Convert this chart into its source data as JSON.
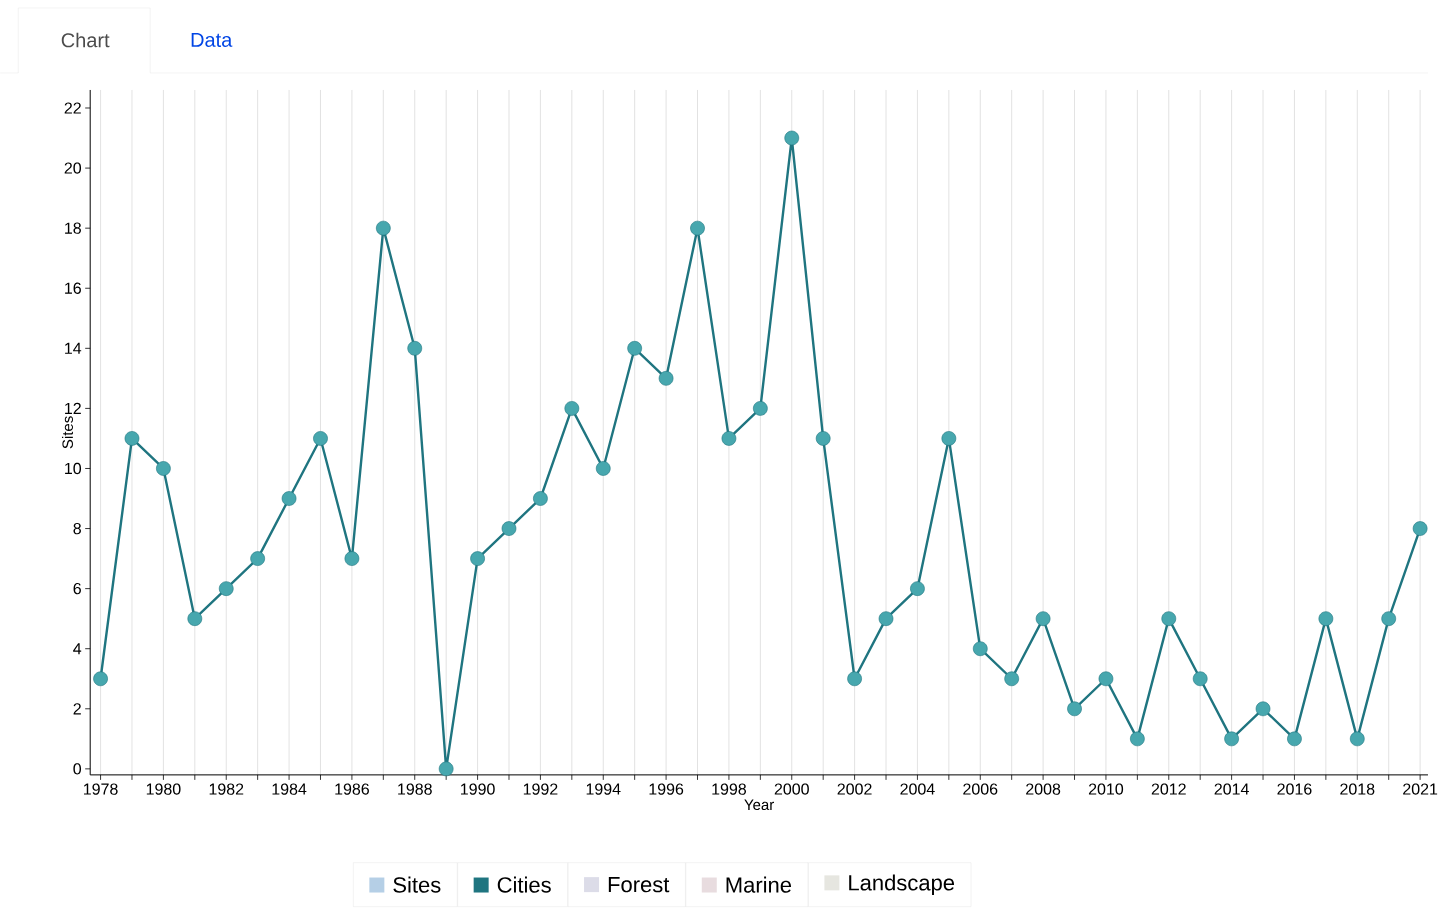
{
  "chart_data": {
    "type": "line",
    "annotations": [
      "Chart",
      "Data"
    ],
    "xlabel": "Year",
    "ylabel": "Sites",
    "categories": [
      "1978",
      null,
      "1980",
      null,
      "1982",
      null,
      "1984",
      null,
      "1986",
      null,
      "1988",
      null,
      "1990",
      null,
      "1992",
      null,
      "1994",
      null,
      "1996",
      null,
      "1998",
      null,
      "2000",
      null,
      "2002",
      null,
      "2004",
      null,
      "2006",
      null,
      "2008",
      null,
      "2010",
      null,
      "2012",
      null,
      "2014",
      null,
      "2016",
      null,
      "2018",
      null,
      "2021"
    ],
    "series": [
      {
        "name": "Sites",
        "color": "#b5cfe6",
        "values": [
          null,
          null,
          null,
          null,
          null,
          null,
          null,
          null,
          null,
          null,
          null,
          null,
          null,
          null,
          null,
          null,
          null,
          null,
          null,
          null,
          null,
          null,
          null,
          null,
          null,
          null,
          null,
          null,
          null,
          null,
          null,
          null,
          null,
          null,
          null,
          null,
          null,
          null,
          null,
          null,
          null,
          null,
          null
        ]
      },
      {
        "name": "Cities",
        "color": "#1f7580",
        "values": [
          3,
          11,
          10,
          5,
          6,
          7,
          9,
          11,
          7,
          18,
          14,
          0,
          7,
          8,
          9,
          12,
          10,
          14,
          13,
          18,
          11,
          12,
          21,
          11,
          3,
          5,
          6,
          11,
          4,
          3,
          5,
          2,
          3,
          1,
          5,
          3,
          1,
          2,
          1,
          5,
          1,
          5,
          8
        ]
      },
      {
        "name": "Forest",
        "color": "#dcdce8",
        "values": [
          null,
          null,
          null,
          null,
          null,
          null,
          null,
          null,
          null,
          null,
          null,
          null,
          null,
          null,
          null,
          null,
          null,
          null,
          null,
          null,
          null,
          null,
          null,
          null,
          null,
          null,
          null,
          null,
          null,
          null,
          null,
          null,
          null,
          null,
          null,
          null,
          null,
          null,
          null,
          null,
          null,
          null,
          null
        ]
      },
      {
        "name": "Marine",
        "color": "#e8dcdf",
        "values": [
          null,
          null,
          null,
          null,
          null,
          null,
          null,
          null,
          null,
          null,
          null,
          null,
          null,
          null,
          null,
          null,
          null,
          null,
          null,
          null,
          null,
          null,
          null,
          null,
          null,
          null,
          null,
          null,
          null,
          null,
          null,
          null,
          null,
          null,
          null,
          null,
          null,
          null,
          null,
          null,
          null,
          null,
          null
        ]
      },
      {
        "name": "Landscape",
        "color": "#e6e6e0",
        "values": [
          null,
          null,
          null,
          null,
          null,
          null,
          null,
          null,
          null,
          null,
          null,
          null,
          null,
          null,
          null,
          null,
          null,
          null,
          null,
          null,
          null,
          null,
          null,
          null,
          null,
          null,
          null,
          null,
          null,
          null,
          null,
          null,
          null,
          null,
          null,
          null,
          null,
          null,
          null,
          null,
          null,
          null,
          null
        ]
      }
    ],
    "ylim": [
      -0.2,
      22.6
    ],
    "yticks": [
      0,
      2,
      4,
      6,
      8,
      10,
      12,
      14,
      16,
      18,
      20,
      22
    ],
    "grid": "x",
    "marker": "circle",
    "line_style": "solid",
    "legend": "bottom"
  }
}
